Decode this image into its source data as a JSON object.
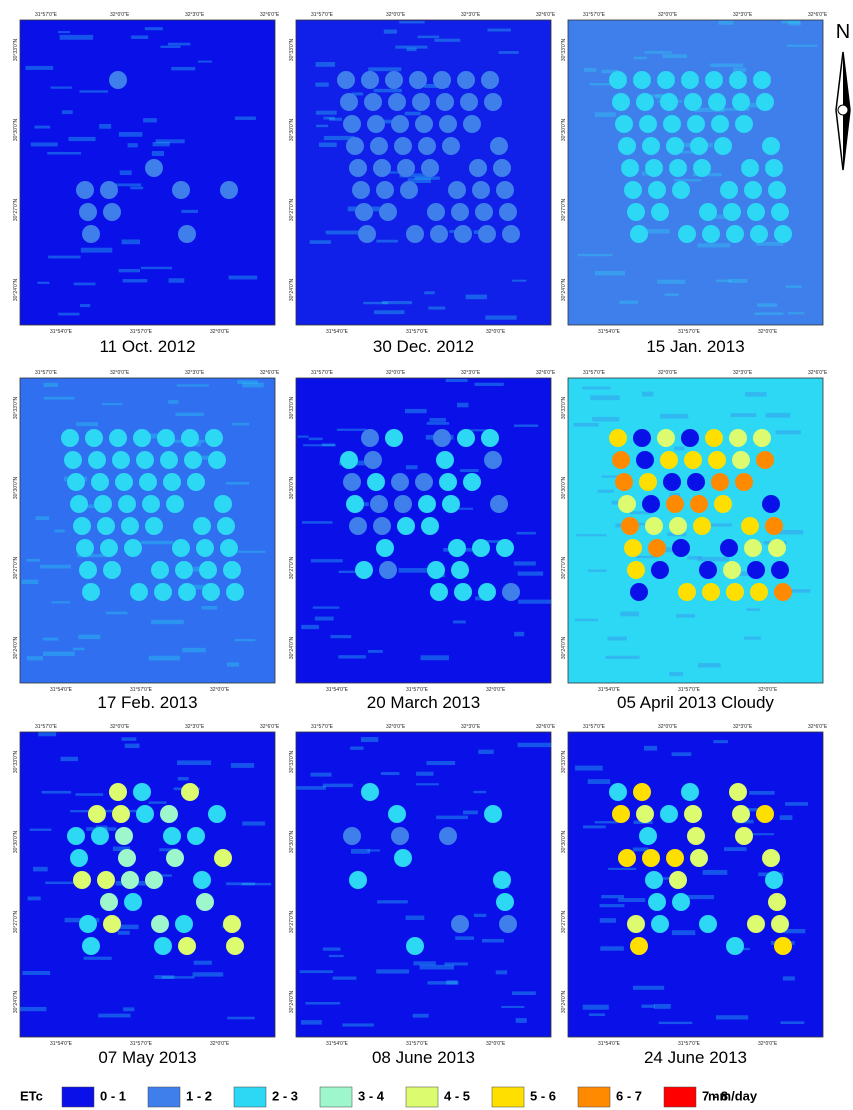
{
  "panels": [
    {
      "caption": "11 Oct. 2012"
    },
    {
      "caption": "30 Dec. 2012"
    },
    {
      "caption": "15 Jan. 2013"
    },
    {
      "caption": "17 Feb. 2013"
    },
    {
      "caption": "20 March 2013"
    },
    {
      "caption": "05 April 2013 Cloudy"
    },
    {
      "caption": "07 May 2013"
    },
    {
      "caption": "08 June 2013"
    },
    {
      "caption": "24  June 2013"
    }
  ],
  "axis_labels": {
    "top": [
      "31°57'0\"E",
      "32°0'0\"E",
      "32°3'0\"E",
      "32°6'0\"E"
    ],
    "bottom": [
      "31°54'0\"E",
      "31°57'0\"E",
      "32°0'0\"E"
    ],
    "left": [
      "30°33'0\"N",
      "30°30'0\"N",
      "30°27'0\"N",
      "30°24'0\"N"
    ]
  },
  "north": "N",
  "legend": {
    "title": "ETc",
    "unit": "mm/day",
    "items": [
      {
        "label": "0 - 1",
        "color": "#0a10e8"
      },
      {
        "label": "1 - 2",
        "color": "#3f7fec"
      },
      {
        "label": "2 - 3",
        "color": "#2cd8f4"
      },
      {
        "label": "3 - 4",
        "color": "#9ef6cc"
      },
      {
        "label": "4 - 5",
        "color": "#dcfb6e"
      },
      {
        "label": "5 - 6",
        "color": "#ffdf00"
      },
      {
        "label": "6 - 7",
        "color": "#ff8a00"
      },
      {
        "label": "7 - 8",
        "color": "#ff0000"
      }
    ]
  }
}
